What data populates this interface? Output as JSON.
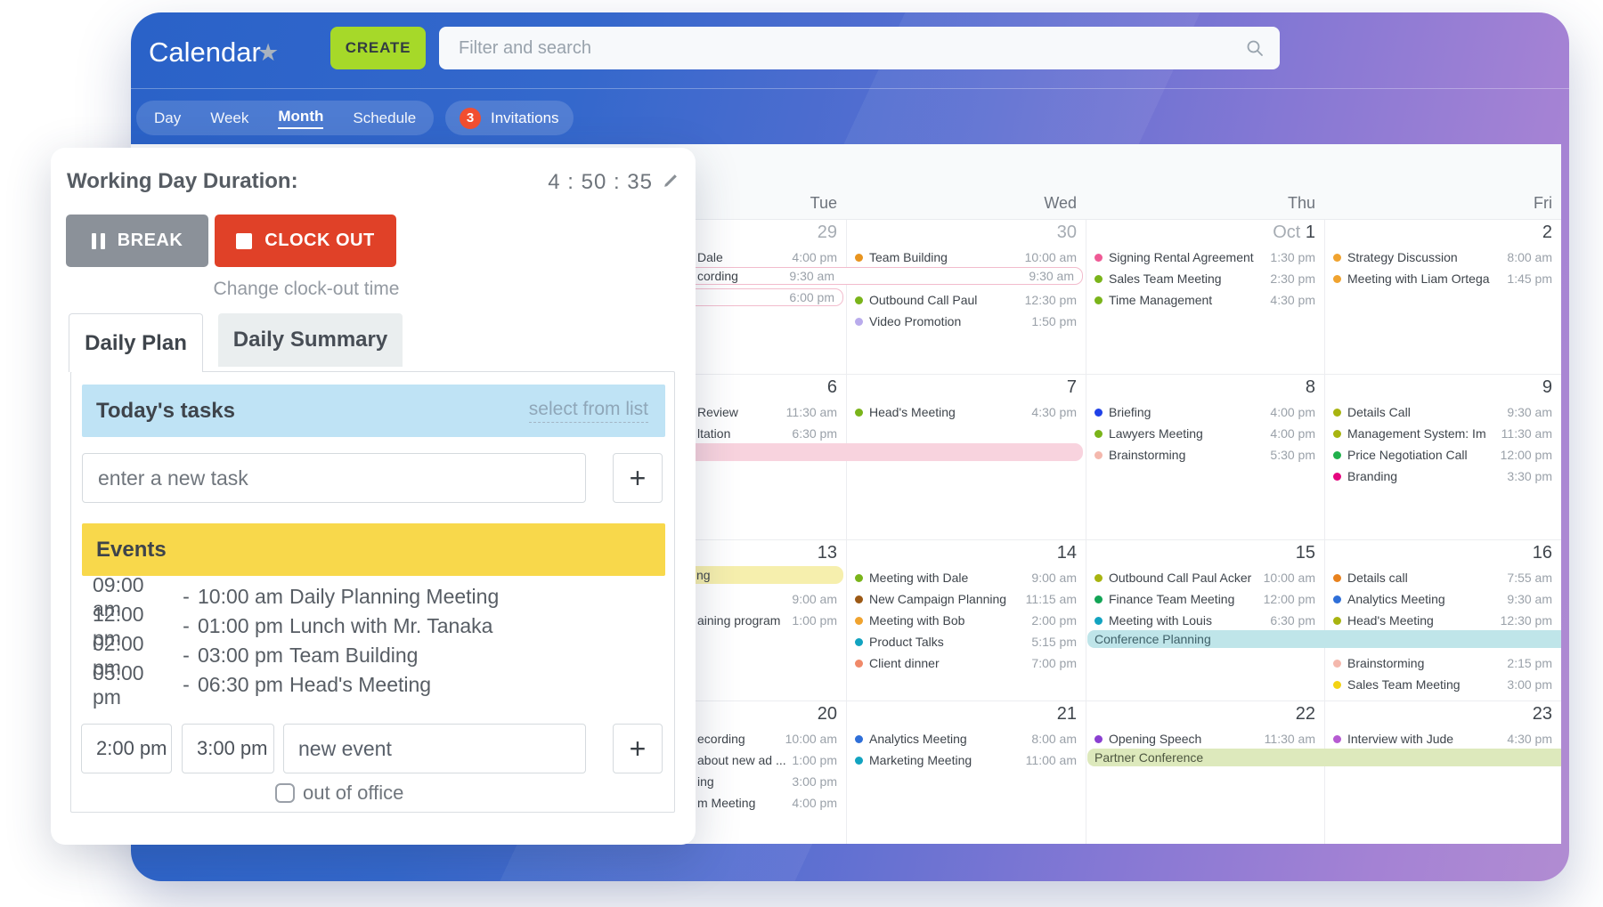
{
  "header": {
    "title": "Calendar",
    "create_label": "CREATE",
    "search_placeholder": "Filter and search",
    "view_tabs": [
      "Day",
      "Week",
      "Month",
      "Schedule"
    ],
    "active_view_tab": "Month",
    "invitations_count": "3",
    "invitations_label": "Invitations",
    "colors": {
      "create_green": "#a6d929",
      "badge_red": "#f14f31",
      "gradient_left": "#2a62c8",
      "gradient_right": "#b18cd2"
    }
  },
  "panel": {
    "duration_label": "Working Day Duration:",
    "duration_value": "4 : 50 : 35",
    "break_label": "BREAK",
    "clockout_label": "CLOCK OUT",
    "change_link": "Change clock-out time",
    "tab_plan": "Daily Plan",
    "tab_summary": "Daily Summary",
    "tasks_header": "Today's tasks",
    "select_link": "select from list",
    "task_placeholder": "enter a new task",
    "events_header": "Events",
    "events": [
      {
        "start": "09:00 am",
        "end": "10:00 am",
        "name": "Daily Planning Meeting"
      },
      {
        "start": "12:00 pm",
        "end": "01:00 pm",
        "name": "Lunch with Mr. Tanaka"
      },
      {
        "start": "02:00 pm",
        "end": "03:00 pm",
        "name": "Team Building"
      },
      {
        "start": "05:00 pm",
        "end": "06:30 pm",
        "name": "Head's Meeting"
      }
    ],
    "new_event_start": "2:00 pm",
    "new_event_end": "3:00 pm",
    "new_event_placeholder": "new event",
    "out_of_office_label": "out of office",
    "colors": {
      "break_gray": "#8b9199",
      "clockout_red": "#e04128",
      "tasks_band_blue": "#bfe3f5",
      "events_band_yellow": "#f8d84b"
    }
  },
  "calendar": {
    "day_headers": [
      "Tue",
      "Wed",
      "Thu",
      "Fri"
    ],
    "weeks": [
      {
        "days": [
          {
            "date": "29",
            "muted": true,
            "events": [
              {
                "name": "Dale",
                "time": "4:00 pm",
                "cut": true
              },
              {
                "spacer": true
              },
              {
                "spacer": true
              }
            ]
          },
          {
            "date": "30",
            "muted": true,
            "events": [
              {
                "name": "Team Building",
                "time": "10:00 am",
                "dot": "#e8941f"
              },
              {
                "spacer": true
              },
              {
                "name": "Outbound Call Paul",
                "time": "12:30 pm",
                "dot": "#7ab41a"
              },
              {
                "name": "Video Promotion",
                "time": "1:50 pm",
                "dot": "#b9abec"
              }
            ]
          },
          {
            "date": "1",
            "date_prefix": "Oct",
            "events": [
              {
                "name": "Signing Rental Agreement",
                "time": "1:30 pm",
                "dot": "#ef5a95"
              },
              {
                "name": "Sales Team Meeting",
                "time": "2:30 pm",
                "dot": "#7ab41a"
              },
              {
                "name": "Time Management",
                "time": "4:30 pm",
                "dot": "#7ab41a"
              }
            ]
          },
          {
            "date": "2",
            "events": [
              {
                "name": "Strategy Discussion",
                "time": "8:00 am",
                "dot": "#f0a32f"
              },
              {
                "name": "Meeting with Liam Ortega",
                "time": "1:45 pm",
                "dot": "#f0a32f"
              }
            ]
          }
        ],
        "banners": [
          {
            "slot": 1,
            "col_start": 0,
            "col_end": 1,
            "style": "outline-pink",
            "label": "cording",
            "cut": true,
            "times": [
              "9:30 am",
              "9:30 am"
            ]
          },
          {
            "slot": 2,
            "col_start": 0,
            "col_end": 0,
            "style": "outline-pink",
            "label": "",
            "cut": true,
            "times": [
              "6:00 pm"
            ]
          }
        ]
      },
      {
        "days": [
          {
            "date": "6",
            "events": [
              {
                "name": "Review",
                "time": "11:30 am",
                "cut": true
              },
              {
                "name": "ltation",
                "time": "6:30 pm",
                "cut": true
              },
              {
                "spacer": true
              }
            ]
          },
          {
            "date": "7",
            "events": [
              {
                "name": "Head's Meeting",
                "time": "4:30 pm",
                "dot": "#7ab41a"
              },
              {
                "spacer": true
              },
              {
                "spacer": true
              }
            ]
          },
          {
            "date": "8",
            "events": [
              {
                "name": "Briefing",
                "time": "4:00 pm",
                "dot": "#1f41e8"
              },
              {
                "name": "Lawyers Meeting",
                "time": "4:00 pm",
                "dot": "#7ab41a"
              },
              {
                "name": "Brainstorming",
                "time": "5:30 pm",
                "dot": "#f4b8ad"
              }
            ]
          },
          {
            "date": "9",
            "events": [
              {
                "name": "Details Call",
                "time": "9:30 am",
                "dot": "#a8b410"
              },
              {
                "name": "Management System: Im",
                "time": "11:30 am",
                "dot": "#a8b410"
              },
              {
                "name": "Price Negotiation Call",
                "time": "12:00 pm",
                "dot": "#21b14c"
              },
              {
                "name": "Branding",
                "time": "3:30 pm",
                "dot": "#e5067f"
              }
            ]
          }
        ],
        "banners": [
          {
            "slot": 2,
            "col_start": 0,
            "col_end": 1,
            "style": "solid-pink",
            "label": "",
            "cut": true,
            "times": []
          }
        ]
      },
      {
        "days": [
          {
            "date": "13",
            "events": [
              {
                "spacer": true
              },
              {
                "name": "",
                "time": "9:00 am",
                "cut": true
              },
              {
                "name": "aining program",
                "time": "1:00 pm",
                "cut": true
              }
            ]
          },
          {
            "date": "14",
            "events": [
              {
                "name": "Meeting with Dale",
                "time": "9:00 am",
                "dot": "#7ab41a"
              },
              {
                "name": "New Campaign Planning",
                "time": "11:15 am",
                "dot": "#9c5915"
              },
              {
                "name": "Meeting with Bob",
                "time": "2:00 pm",
                "dot": "#f0a32f"
              },
              {
                "name": "Product Talks",
                "time": "5:15 pm",
                "dot": "#12a3c0"
              },
              {
                "name": "Client dinner",
                "time": "7:00 pm",
                "dot": "#f08969"
              }
            ]
          },
          {
            "date": "15",
            "events": [
              {
                "name": "Outbound Call Paul Acker",
                "time": "10:00 am",
                "dot": "#a8b410"
              },
              {
                "name": "Finance Team Meeting",
                "time": "12:00 pm",
                "dot": "#12a455"
              },
              {
                "name": "Meeting with Louis",
                "time": "6:30 pm",
                "dot": "#12a3c0"
              },
              {
                "spacer": true
              }
            ]
          },
          {
            "date": "16",
            "events": [
              {
                "name": "Details call",
                "time": "7:55 am",
                "dot": "#e8821e"
              },
              {
                "name": "Analytics Meeting",
                "time": "9:30 am",
                "dot": "#2f6fd8"
              },
              {
                "name": "Head's Meeting",
                "time": "12:30 pm",
                "dot": "#a8b410"
              },
              {
                "spacer": true
              },
              {
                "name": "Brainstorming",
                "time": "2:15 pm",
                "dot": "#f4b8ad"
              },
              {
                "name": "Sales Team Meeting",
                "time": "3:00 pm",
                "dot": "#f3d313"
              }
            ]
          }
        ],
        "banners": [
          {
            "slot": 0,
            "col_start": 0,
            "col_end": 0,
            "style": "solid-yellow",
            "label": "ng",
            "cut": true,
            "times": []
          },
          {
            "slot": 3,
            "col_start": 2,
            "col_end": 3,
            "style": "solid-teal",
            "label": "Conference Planning",
            "times": []
          }
        ]
      },
      {
        "days": [
          {
            "date": "20",
            "events": [
              {
                "name": "ecording",
                "time": "10:00 am",
                "cut": true
              },
              {
                "name": "about new ad ...",
                "time": "1:00 pm",
                "cut": true
              },
              {
                "name": "ing",
                "time": "3:00 pm",
                "cut": true
              },
              {
                "name": "m Meeting",
                "time": "4:00 pm",
                "cut": true
              }
            ]
          },
          {
            "date": "21",
            "events": [
              {
                "name": "Analytics Meeting",
                "time": "8:00 am",
                "dot": "#2f6fd8"
              },
              {
                "name": "Marketing Meeting",
                "time": "11:00 am",
                "dot": "#12a3c0"
              }
            ]
          },
          {
            "date": "22",
            "events": [
              {
                "name": "Opening Speech",
                "time": "11:30 am",
                "dot": "#8a3fd1"
              },
              {
                "spacer": true
              }
            ]
          },
          {
            "date": "23",
            "events": [
              {
                "name": "Interview with Jude",
                "time": "4:30 pm",
                "dot": "#b65bd2"
              }
            ]
          }
        ],
        "banners": [
          {
            "slot": 1,
            "col_start": 2,
            "col_end": 3,
            "style": "solid-green",
            "label": "Partner Conference",
            "times": []
          }
        ]
      }
    ]
  }
}
